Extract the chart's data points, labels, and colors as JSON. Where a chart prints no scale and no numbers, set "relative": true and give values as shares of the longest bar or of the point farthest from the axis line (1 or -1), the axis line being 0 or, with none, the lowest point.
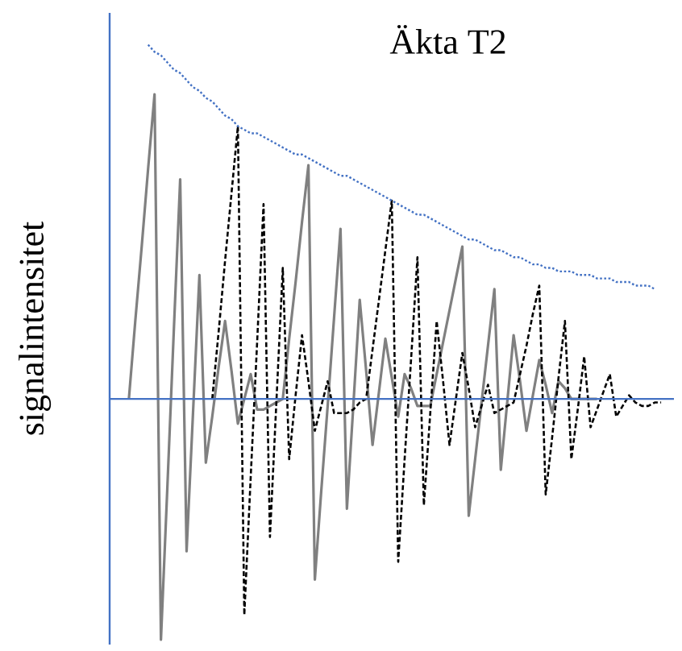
{
  "chart_data": {
    "type": "line",
    "title": "Äkta T2",
    "ylabel": "signalintensitet",
    "relative": true,
    "ref_lines": [
      {
        "axis": "y",
        "value": 0,
        "color": "#4472c4",
        "line_style": "solid"
      }
    ],
    "categories": [
      null,
      null,
      null,
      null,
      null,
      null,
      null,
      null,
      null,
      null,
      null,
      null,
      null,
      null,
      null,
      null,
      null,
      null,
      null,
      null,
      null,
      null,
      null,
      null,
      null,
      null,
      null,
      null,
      null,
      null,
      null,
      null,
      null,
      null,
      null,
      null,
      null,
      null,
      null,
      null,
      null,
      null,
      null,
      null,
      null,
      null,
      null,
      null,
      null,
      null,
      null,
      null,
      null,
      null,
      null,
      null,
      null,
      null,
      null,
      null,
      null,
      null,
      null,
      null,
      null,
      null,
      null,
      null,
      null,
      null,
      null,
      null,
      null,
      null,
      null,
      null,
      null,
      null,
      null,
      null,
      null,
      null,
      null,
      null
    ],
    "series": [
      {
        "color": "#808080",
        "line_style": "solid",
        "values": [
          0,
          0.22,
          0.43,
          0.65,
          0.86,
          -0.68,
          -0.25,
          0.19,
          0.62,
          -0.43,
          -0.04,
          0.35,
          -0.18,
          -0.05,
          0.09,
          0.22,
          0.08,
          -0.07,
          0,
          0.07,
          -0.03,
          -0.03,
          -0.02,
          -0.01,
          0,
          0.17,
          0.33,
          0.5,
          0.66,
          -0.51,
          -0.26,
          -0.02,
          0.23,
          0.48,
          -0.31,
          -0.02,
          0.28,
          0.08,
          -0.13,
          0.02,
          0.17,
          0.06,
          -0.05,
          0.07,
          0.03,
          -0.02,
          -0.02,
          -0.02,
          0.07,
          0.16,
          0.25,
          0.34,
          0.43,
          -0.33,
          -0.17,
          -0.01,
          0.15,
          0.31,
          -0.2,
          -0.01,
          0.18,
          0.05,
          -0.09,
          0.01,
          0.11,
          0.04,
          -0.04,
          0.05,
          0.03,
          0,
          0,
          0,
          0,
          0,
          null,
          null,
          null,
          null,
          null,
          null,
          null,
          null,
          null,
          null
        ]
      },
      {
        "color": "#000000",
        "line_style": "dashed",
        "values": [
          null,
          null,
          null,
          null,
          null,
          null,
          null,
          null,
          null,
          null,
          null,
          null,
          null,
          0,
          0.19,
          0.39,
          0.58,
          0.77,
          -0.61,
          -0.22,
          0.16,
          0.55,
          -0.39,
          -0.01,
          0.37,
          -0.17,
          0.01,
          0.18,
          0.05,
          -0.09,
          -0.02,
          0.05,
          -0.04,
          -0.04,
          -0.04,
          -0.03,
          -0.01,
          0,
          0.14,
          0.28,
          0.42,
          0.56,
          -0.46,
          -0.17,
          0.11,
          0.4,
          -0.3,
          -0.04,
          0.22,
          0.05,
          -0.13,
          0,
          0.13,
          0.03,
          -0.08,
          -0.02,
          0.04,
          -0.04,
          -0.03,
          -0.02,
          -0.01,
          0.07,
          0.15,
          0.24,
          0.32,
          -0.27,
          -0.11,
          0.06,
          0.22,
          -0.17,
          -0.03,
          0.12,
          -0.08,
          -0.03,
          0.02,
          0.07,
          -0.05,
          -0.02,
          0.01,
          -0.01,
          -0.02,
          -0.02,
          -0.01,
          -0.01
        ]
      },
      {
        "color": "#4472c4",
        "line_style": "dotted",
        "values": [
          null,
          null,
          null,
          1.0,
          0.98,
          0.97,
          0.95,
          0.93,
          0.92,
          0.9,
          0.88,
          0.87,
          0.85,
          0.84,
          0.82,
          0.8,
          0.79,
          0.77,
          0.76,
          0.75,
          0.75,
          0.74,
          0.73,
          0.72,
          0.71,
          0.7,
          0.69,
          0.69,
          0.68,
          0.67,
          0.66,
          0.65,
          0.64,
          0.63,
          0.63,
          0.62,
          0.61,
          0.6,
          0.59,
          0.58,
          0.57,
          0.56,
          0.55,
          0.54,
          0.53,
          0.52,
          0.52,
          0.51,
          0.5,
          0.49,
          0.48,
          0.47,
          0.46,
          0.45,
          0.45,
          0.44,
          0.43,
          0.42,
          0.42,
          0.41,
          0.4,
          0.4,
          0.39,
          0.38,
          0.38,
          0.37,
          0.37,
          0.36,
          0.36,
          0.36,
          0.35,
          0.35,
          0.35,
          0.34,
          0.34,
          0.34,
          0.33,
          0.33,
          0.33,
          0.32,
          0.32,
          0.32,
          0.31,
          null
        ]
      }
    ]
  }
}
